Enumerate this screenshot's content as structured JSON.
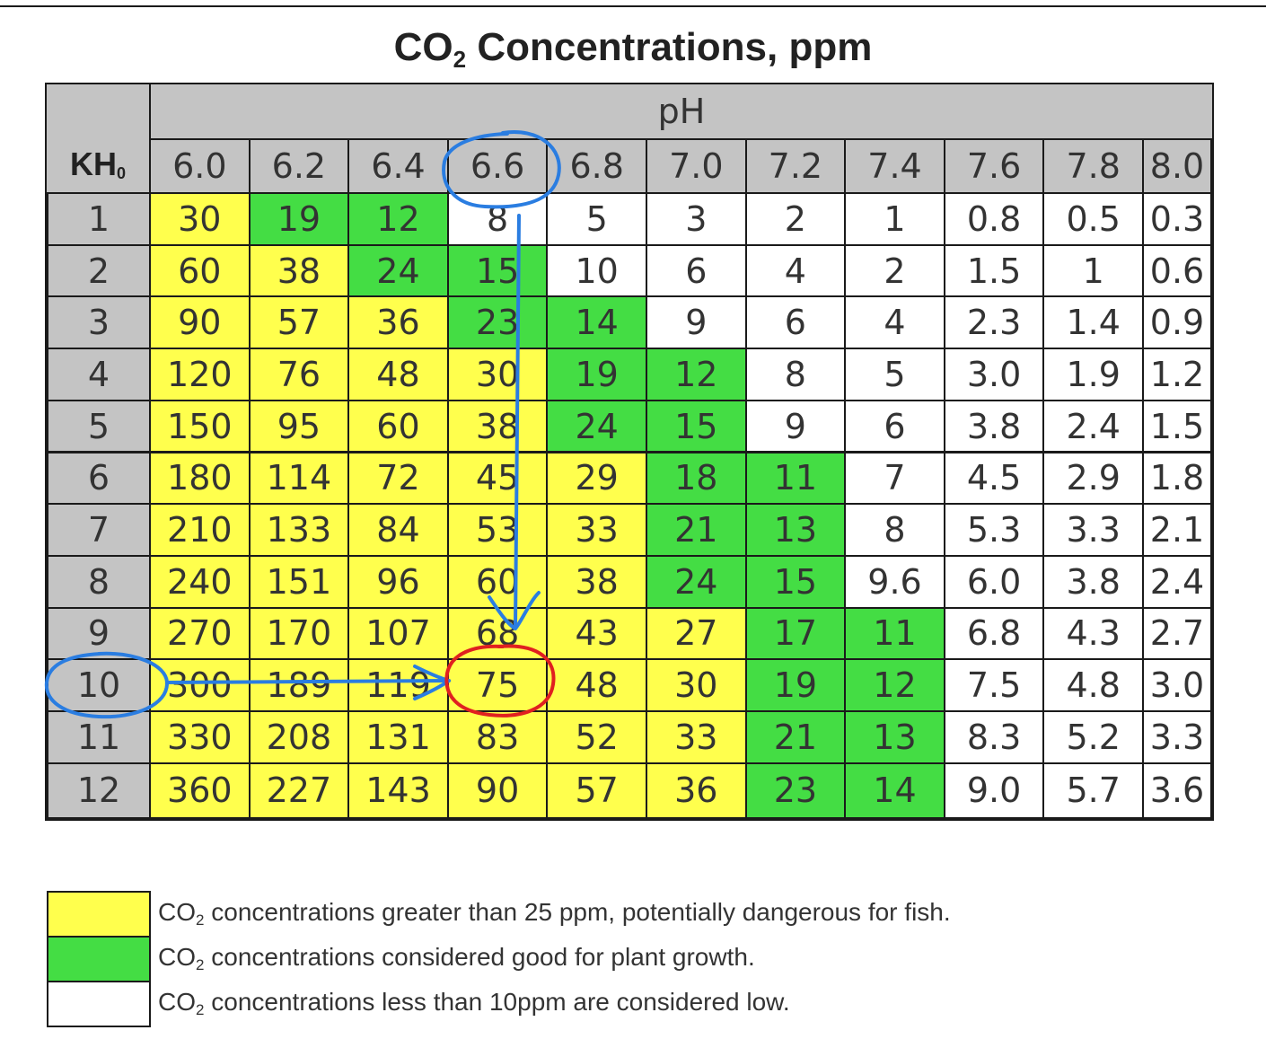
{
  "chart_data": {
    "type": "table",
    "title": "CO2 Concentrations, ppm",
    "title_main": "CO",
    "title_sub": "2",
    "title_rest": " Concentrations, ppm",
    "row_header": "KH",
    "row_header_sup": "0",
    "col_header": "pH",
    "columns": [
      "6.0",
      "6.2",
      "6.4",
      "6.6",
      "6.8",
      "7.0",
      "7.2",
      "7.4",
      "7.6",
      "7.8",
      "8.0"
    ],
    "rows": [
      "1",
      "2",
      "3",
      "4",
      "5",
      "6",
      "7",
      "8",
      "9",
      "10",
      "11",
      "12"
    ],
    "values": [
      [
        "30",
        "19",
        "12",
        "8",
        "5",
        "3",
        "2",
        "1",
        "0.8",
        "0.5",
        "0.3"
      ],
      [
        "60",
        "38",
        "24",
        "15",
        "10",
        "6",
        "4",
        "2",
        "1.5",
        "1",
        "0.6"
      ],
      [
        "90",
        "57",
        "36",
        "23",
        "14",
        "9",
        "6",
        "4",
        "2.3",
        "1.4",
        "0.9"
      ],
      [
        "120",
        "76",
        "48",
        "30",
        "19",
        "12",
        "8",
        "5",
        "3.0",
        "1.9",
        "1.2"
      ],
      [
        "150",
        "95",
        "60",
        "38",
        "24",
        "15",
        "9",
        "6",
        "3.8",
        "2.4",
        "1.5"
      ],
      [
        "180",
        "114",
        "72",
        "45",
        "29",
        "18",
        "11",
        "7",
        "4.5",
        "2.9",
        "1.8"
      ],
      [
        "210",
        "133",
        "84",
        "53",
        "33",
        "21",
        "13",
        "8",
        "5.3",
        "3.3",
        "2.1"
      ],
      [
        "240",
        "151",
        "96",
        "60",
        "38",
        "24",
        "15",
        "9.6",
        "6.0",
        "3.8",
        "2.4"
      ],
      [
        "270",
        "170",
        "107",
        "68",
        "43",
        "27",
        "17",
        "11",
        "6.8",
        "4.3",
        "2.7"
      ],
      [
        "300",
        "189",
        "119",
        "75",
        "48",
        "30",
        "19",
        "12",
        "7.5",
        "4.8",
        "3.0"
      ],
      [
        "330",
        "208",
        "131",
        "83",
        "52",
        "33",
        "21",
        "13",
        "8.3",
        "5.2",
        "3.3"
      ],
      [
        "360",
        "227",
        "143",
        "90",
        "57",
        "36",
        "23",
        "14",
        "9.0",
        "5.7",
        "3.6"
      ]
    ],
    "cell_classes": [
      [
        "y",
        "g",
        "g",
        "w",
        "w",
        "w",
        "w",
        "w",
        "w",
        "w",
        "w"
      ],
      [
        "y",
        "y",
        "g",
        "g",
        "w",
        "w",
        "w",
        "w",
        "w",
        "w",
        "w"
      ],
      [
        "y",
        "y",
        "y",
        "g",
        "g",
        "w",
        "w",
        "w",
        "w",
        "w",
        "w"
      ],
      [
        "y",
        "y",
        "y",
        "y",
        "g",
        "g",
        "w",
        "w",
        "w",
        "w",
        "w"
      ],
      [
        "y",
        "y",
        "y",
        "y",
        "g",
        "g",
        "w",
        "w",
        "w",
        "w",
        "w"
      ],
      [
        "y",
        "y",
        "y",
        "y",
        "y",
        "g",
        "g",
        "w",
        "w",
        "w",
        "w"
      ],
      [
        "y",
        "y",
        "y",
        "y",
        "y",
        "g",
        "g",
        "w",
        "w",
        "w",
        "w"
      ],
      [
        "y",
        "y",
        "y",
        "y",
        "y",
        "g",
        "g",
        "w",
        "w",
        "w",
        "w"
      ],
      [
        "y",
        "y",
        "y",
        "y",
        "y",
        "y",
        "g",
        "g",
        "w",
        "w",
        "w"
      ],
      [
        "y",
        "y",
        "y",
        "y",
        "y",
        "y",
        "g",
        "g",
        "w",
        "w",
        "w"
      ],
      [
        "y",
        "y",
        "y",
        "y",
        "y",
        "y",
        "g",
        "g",
        "w",
        "w",
        "w"
      ],
      [
        "y",
        "y",
        "y",
        "y",
        "y",
        "y",
        "g",
        "g",
        "w",
        "w",
        "w"
      ]
    ],
    "colors": {
      "y": "#ffff4d",
      "g": "#44dd44",
      "w": "#ffffff",
      "header": "#c4c4c4"
    },
    "highlights": {
      "selected_row": "10",
      "selected_column": "6.6",
      "result_value": "75",
      "annotation_colors": {
        "path": "#2a7de1",
        "result": "#e02020"
      }
    }
  },
  "legend": [
    {
      "color": "#ffff4d",
      "pre": "CO",
      "sub": "2",
      "text": " concentrations greater than 25 ppm, potentially dangerous for fish."
    },
    {
      "color": "#44dd44",
      "pre": "CO",
      "sub": "2",
      "text": " concentrations considered good for plant growth."
    },
    {
      "color": "#ffffff",
      "pre": "CO",
      "sub": "2",
      "text": " concentrations less than 10ppm are considered low."
    }
  ]
}
